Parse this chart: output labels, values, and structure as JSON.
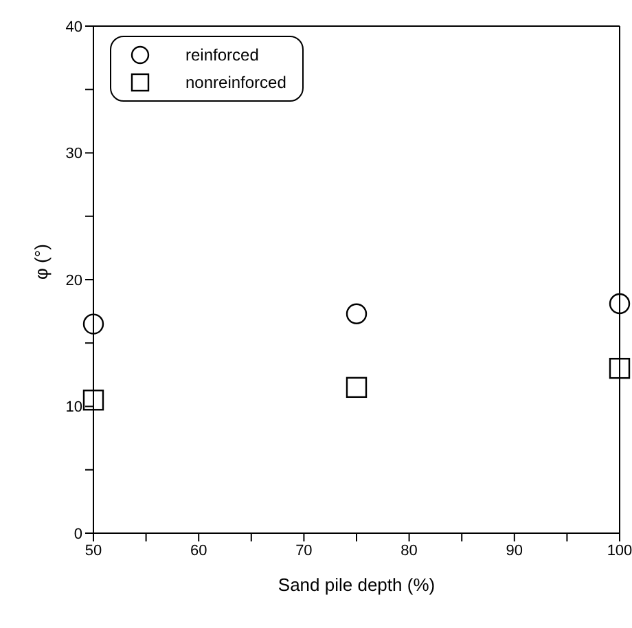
{
  "chart_data": {
    "type": "scatter",
    "xlabel": "Sand pile depth (%)",
    "ylabel": "φ (°)",
    "xlim": [
      50,
      100
    ],
    "xticks": [
      50,
      {
        "value": 55,
        "label": null
      },
      60,
      {
        "value": 65,
        "label": null
      },
      70,
      {
        "value": 75,
        "label": null
      },
      80,
      {
        "value": 85,
        "label": null
      },
      90,
      {
        "value": 95,
        "label": null
      },
      100
    ],
    "ylim": [
      0,
      40
    ],
    "yticks": [
      0,
      {
        "value": 5,
        "label": null
      },
      10,
      {
        "value": 15,
        "label": null
      },
      20,
      {
        "value": 25,
        "label": null
      },
      30,
      {
        "value": 35,
        "label": null
      },
      40
    ],
    "x": [
      50,
      75,
      100
    ],
    "legend": "top left",
    "grid": false,
    "series": [
      {
        "name": "reinforced",
        "color": "#000000",
        "marker": "circle",
        "values": [
          16.5,
          17.3,
          18.1
        ]
      },
      {
        "name": "nonreinforced",
        "color": "#000000",
        "marker": "square",
        "values": [
          10.5,
          11.5,
          13
        ]
      }
    ]
  }
}
